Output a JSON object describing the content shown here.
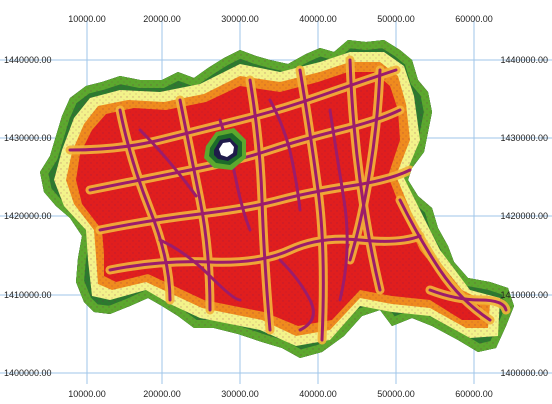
{
  "map": {
    "x_ticks": [
      "10000.00",
      "20000.00",
      "30000.00",
      "40000.00",
      "50000.00",
      "60000.00"
    ],
    "y_ticks": [
      "1440000.00",
      "1430000.00",
      "1420000.00",
      "1410000.00",
      "1400000.00"
    ],
    "colors": {
      "background": "#ffffff",
      "gridline": "#9fc6ea",
      "ramp_far": "#1f1b4a",
      "ramp_green_dark": "#1c6b2a",
      "ramp_green": "#5ca82e",
      "ramp_yellow": "#f3f38a",
      "ramp_orange": "#ef8b1e",
      "ramp_red": "#e01e1e",
      "ramp_near": "#9c1c6b"
    },
    "layer": "distance raster with drainage lines"
  }
}
